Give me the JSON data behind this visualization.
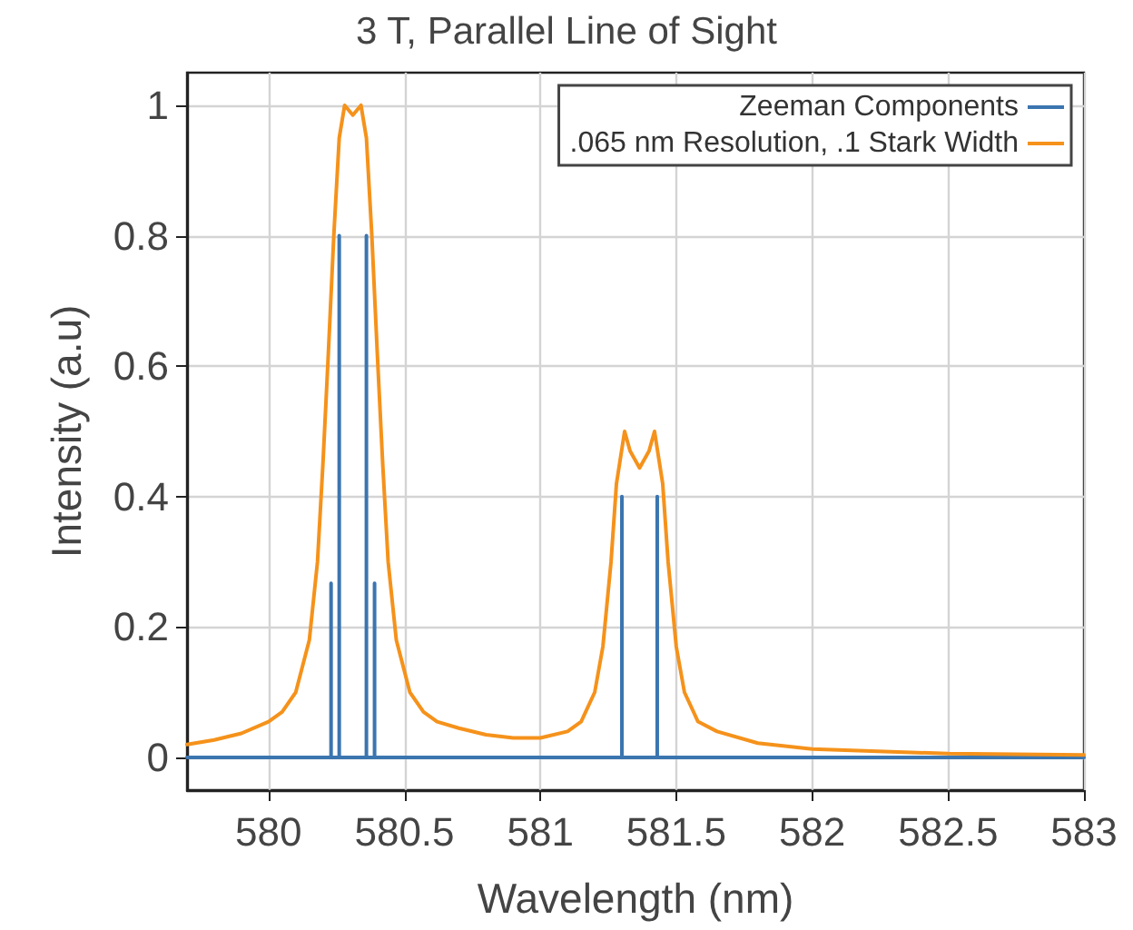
{
  "chart_data": {
    "type": "line",
    "title": "3 T, Parallel Line of Sight",
    "xlabel": "Wavelength (nm)",
    "ylabel": "Intensity (a.u)",
    "xlim": [
      579.7,
      583
    ],
    "xticks": [
      580,
      580.5,
      581,
      581.5,
      582,
      582.5,
      583
    ],
    "ylim": [
      -0.05,
      1.05
    ],
    "yticks": [
      0,
      0.2,
      0.4,
      0.6,
      0.8,
      1
    ],
    "grid": true,
    "legend": "top right",
    "marker": "none",
    "line_style": "solid",
    "series": [
      {
        "name": "Zeeman Components",
        "color": "#3b75af",
        "x": [
          579.7,
          580.23,
          580.23,
          580.23,
          580.26,
          580.26,
          580.26,
          580.36,
          580.36,
          580.36,
          580.39,
          580.39,
          580.39,
          581.3,
          581.3,
          581.3,
          581.43,
          581.43,
          581.43,
          583
        ],
        "values": [
          0,
          0,
          0.267,
          0,
          0,
          0.8,
          0,
          0,
          0.8,
          0,
          0,
          0.267,
          0,
          0,
          0.4,
          0,
          0,
          0.4,
          0,
          0
        ]
      },
      {
        "name": ".065 nm Resolution, .1 Stark Width",
        "color": "#f5921b",
        "x": [
          579.7,
          579.8,
          579.9,
          580.0,
          580.05,
          580.1,
          580.15,
          580.18,
          580.2,
          580.22,
          580.24,
          580.26,
          580.28,
          580.31,
          580.34,
          580.36,
          580.38,
          580.4,
          580.42,
          580.44,
          580.47,
          580.52,
          580.57,
          580.62,
          580.7,
          580.8,
          580.9,
          581.0,
          581.1,
          581.15,
          581.2,
          581.23,
          581.26,
          581.28,
          581.31,
          581.33,
          581.365,
          581.4,
          581.42,
          581.45,
          581.47,
          581.5,
          581.53,
          581.58,
          581.65,
          581.8,
          582.0,
          582.5,
          583.0
        ],
        "values": [
          0.02,
          0.027,
          0.037,
          0.055,
          0.07,
          0.1,
          0.18,
          0.3,
          0.45,
          0.62,
          0.8,
          0.95,
          1.0,
          0.985,
          1.0,
          0.95,
          0.8,
          0.62,
          0.45,
          0.3,
          0.18,
          0.1,
          0.07,
          0.055,
          0.045,
          0.035,
          0.03,
          0.03,
          0.04,
          0.055,
          0.1,
          0.17,
          0.3,
          0.42,
          0.5,
          0.47,
          0.444,
          0.47,
          0.5,
          0.42,
          0.3,
          0.17,
          0.1,
          0.055,
          0.04,
          0.022,
          0.013,
          0.006,
          0.004
        ]
      }
    ]
  }
}
